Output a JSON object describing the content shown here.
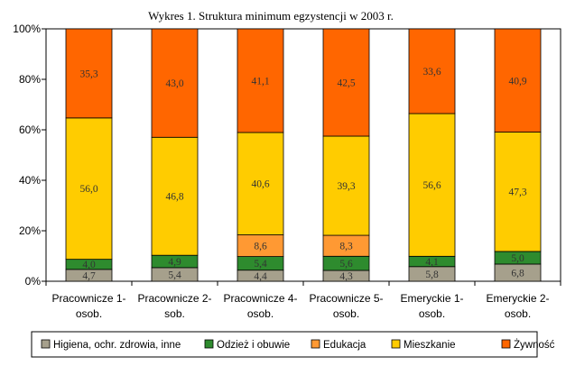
{
  "chart_data": {
    "type": "bar",
    "stacked": "percent",
    "title": "Wykres 1. Struktura minimum egzystencji w 2003 r.",
    "xlabel": "",
    "ylabel": "",
    "ylim": [
      0,
      100
    ],
    "yticks": [
      "0%",
      "20%",
      "40%",
      "60%",
      "80%",
      "100%"
    ],
    "categories": [
      [
        "Pracownicze 1-",
        "osob."
      ],
      [
        "Pracownicze 2-",
        "sob."
      ],
      [
        "Pracownicze 4-",
        "osob."
      ],
      [
        "Pracownicze 5-",
        "osob."
      ],
      [
        "Emeryckie 1-",
        "osob."
      ],
      [
        "Emeryckie 2-",
        "osob."
      ]
    ],
    "series": [
      {
        "name": "Higiena, ochr. zdrowia, inne",
        "color": "#a6a08c",
        "values": [
          4.7,
          5.4,
          4.4,
          4.3,
          5.8,
          6.8
        ],
        "labels": [
          "4,7",
          "5,4",
          "4,4",
          "4,3",
          "5,8",
          "6,8"
        ]
      },
      {
        "name": "Odzież i obuwie",
        "color": "#2e8b2e",
        "values": [
          4.0,
          4.9,
          5.4,
          5.6,
          4.1,
          5.0
        ],
        "labels": [
          "4,0",
          "4,9",
          "5,4",
          "5,6",
          "4,1",
          "5,0"
        ]
      },
      {
        "name": "Edukacja",
        "color": "#ff9933",
        "values": [
          0,
          0,
          8.6,
          8.3,
          0,
          0
        ],
        "labels": [
          "",
          "",
          "8,6",
          "8,3",
          "",
          ""
        ]
      },
      {
        "name": "Mieszkanie",
        "color": "#ffcc00",
        "values": [
          56.0,
          46.8,
          40.6,
          39.3,
          56.6,
          47.3
        ],
        "labels": [
          "56,0",
          "46,8",
          "40,6",
          "39,3",
          "56,6",
          "47,3"
        ]
      },
      {
        "name": "Żywność",
        "color": "#ff6600",
        "values": [
          35.3,
          43.0,
          41.1,
          42.5,
          33.6,
          40.9
        ],
        "labels": [
          "35,3",
          "43,0",
          "41,1",
          "42,5",
          "33,6",
          "40,9"
        ]
      }
    ],
    "grid": false,
    "legend": "bottom"
  }
}
